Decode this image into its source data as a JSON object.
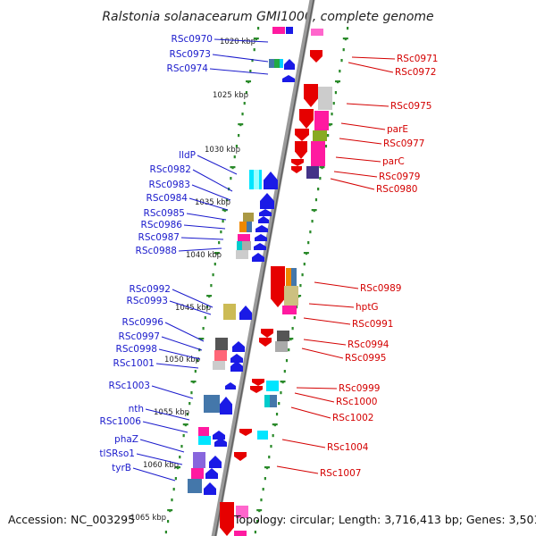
{
  "title": "Ralstonia solanacearum GMI1000, complete genome",
  "footer": {
    "accession": "Accession: NC_003295",
    "info": "Topology: circular; Length: 3,716,413 bp; Genes: 3,501"
  },
  "colors": {
    "left_label": "#1a1acc",
    "right_label": "#d40000",
    "backbone": "#888888",
    "tick": "#2a8a2a",
    "gene_blue": "#1a1ae6",
    "gene_red": "#e60000"
  },
  "kbp_ticks": [
    "1020 kbp",
    "1025 kbp",
    "1030 kbp",
    "1035 kbp",
    "1040 kbp",
    "1045 kbp",
    "1050 kbp",
    "1055 kbp",
    "1060 kbp",
    "1065 kbp"
  ],
  "left_labels": [
    "RSc0970",
    "RSc0973",
    "RSc0974",
    "lldP",
    "RSc0982",
    "RSc0983",
    "RSc0984",
    "RSc0985",
    "RSc0986",
    "RSc0987",
    "RSc0988",
    "RSc0992",
    "RSc0993",
    "RSc0996",
    "RSc0997",
    "RSc0998",
    "RSc1001",
    "RSc1003",
    "nth",
    "RSc1006",
    "phaZ",
    "tlSRso1",
    "tyrB"
  ],
  "right_labels": [
    "RSc0971",
    "RSc0972",
    "RSc0975",
    "parE",
    "RSc0977",
    "parC",
    "RSc0979",
    "RSc0980",
    "RSc0989",
    "hptG",
    "RSc0991",
    "RSc0994",
    "RSc0995",
    "RSc0999",
    "RSc1000",
    "RSc1002",
    "RSc1004",
    "RSc1007"
  ]
}
